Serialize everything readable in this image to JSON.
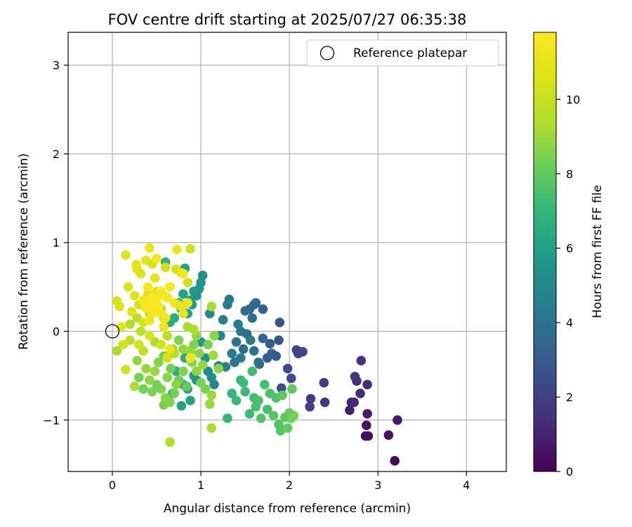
{
  "chart_data": {
    "type": "scatter",
    "title": "FOV centre drift starting at 2025/07/27 06:35:38",
    "xlabel": "Angular distance from reference (arcmin)",
    "ylabel": "Rotation from reference (arcmin)",
    "xlim": [
      -0.5,
      4.45
    ],
    "ylim": [
      -1.58,
      3.37
    ],
    "x_ticks": [
      0,
      1,
      2,
      3,
      4
    ],
    "y_ticks": [
      -1,
      0,
      1,
      2,
      3
    ],
    "grid": true,
    "colormap": "viridis",
    "colorbar": {
      "label": "Hours from first FF file",
      "range": [
        0,
        11.8
      ],
      "ticks": [
        0,
        2,
        4,
        6,
        8,
        10
      ]
    },
    "legend": {
      "placement": "top-right",
      "entries": [
        {
          "label": "Reference platepar",
          "marker": "open-circle",
          "x": 0,
          "y": 0
        }
      ]
    },
    "points": [
      [
        3.19,
        -1.46,
        0.2
      ],
      [
        2.86,
        -1.18,
        0.3
      ],
      [
        2.89,
        -1.18,
        0.4
      ],
      [
        3.12,
        -1.17,
        0.5
      ],
      [
        2.87,
        -1.06,
        0.6
      ],
      [
        3.22,
        -1.0,
        0.7
      ],
      [
        2.88,
        -0.93,
        0.8
      ],
      [
        2.68,
        -0.89,
        0.9
      ],
      [
        2.7,
        -0.8,
        1.0
      ],
      [
        2.73,
        -0.8,
        1.1
      ],
      [
        2.8,
        -0.7,
        1.2
      ],
      [
        2.88,
        -0.6,
        1.3
      ],
      [
        2.76,
        -0.56,
        1.4
      ],
      [
        2.81,
        -0.33,
        1.5
      ],
      [
        2.74,
        -0.51,
        1.6
      ],
      [
        2.4,
        -0.8,
        1.7
      ],
      [
        2.39,
        -0.58,
        1.8
      ],
      [
        2.24,
        -0.76,
        1.9
      ],
      [
        2.23,
        -0.85,
        2.0
      ],
      [
        2.1,
        -0.25,
        2.1
      ],
      [
        2.15,
        -0.23,
        2.2
      ],
      [
        2.08,
        -0.21,
        2.3
      ],
      [
        2.02,
        -0.53,
        2.4
      ],
      [
        1.98,
        -0.42,
        2.5
      ],
      [
        1.91,
        -0.64,
        2.6
      ],
      [
        1.89,
        0.1,
        2.7
      ],
      [
        1.88,
        -0.1,
        2.8
      ],
      [
        1.85,
        -0.28,
        2.9
      ],
      [
        1.78,
        -0.14,
        3.0
      ],
      [
        1.75,
        -0.3,
        3.1
      ],
      [
        1.7,
        0.25,
        3.2
      ],
      [
        1.66,
        -0.37,
        3.3
      ],
      [
        1.6,
        0.3,
        3.4
      ],
      [
        1.62,
        0.32,
        3.5
      ],
      [
        1.55,
        0.25,
        3.6
      ],
      [
        1.5,
        0.23,
        3.7
      ],
      [
        1.48,
        -0.2,
        3.8
      ],
      [
        1.52,
        -0.03,
        3.9
      ],
      [
        1.45,
        0.0,
        4.0
      ],
      [
        1.4,
        -0.12,
        4.1
      ],
      [
        1.38,
        -0.35,
        4.2
      ],
      [
        1.32,
        0.36,
        4.3
      ],
      [
        1.3,
        0.3,
        4.4
      ],
      [
        1.28,
        -0.4,
        4.5
      ],
      [
        1.25,
        0.13,
        4.6
      ],
      [
        1.22,
        -0.05,
        4.7
      ],
      [
        1.2,
        -0.39,
        4.8
      ],
      [
        1.15,
        -0.6,
        4.9
      ],
      [
        1.1,
        0.2,
        5.0
      ],
      [
        1.08,
        -0.45,
        5.1
      ],
      [
        1.6,
        -0.22,
        4.0
      ],
      [
        1.7,
        -0.08,
        3.6
      ],
      [
        1.8,
        -0.25,
        3.2
      ],
      [
        1.56,
        -0.1,
        4.2
      ],
      [
        1.65,
        -0.35,
        3.9
      ],
      [
        1.42,
        0.08,
        4.4
      ],
      [
        1.35,
        -0.25,
        4.6
      ],
      [
        1.58,
        0.15,
        3.8
      ],
      [
        1.45,
        -0.3,
        4.3
      ],
      [
        1.02,
        0.63,
        5.3
      ],
      [
        1.0,
        0.55,
        5.4
      ],
      [
        0.98,
        0.48,
        5.5
      ],
      [
        0.95,
        0.4,
        5.6
      ],
      [
        0.92,
        0.45,
        5.7
      ],
      [
        0.9,
        0.3,
        5.8
      ],
      [
        0.88,
        0.35,
        5.9
      ],
      [
        0.85,
        0.2,
        6.0
      ],
      [
        0.82,
        0.71,
        6.1
      ],
      [
        0.8,
        0.42,
        6.2
      ],
      [
        0.78,
        0.25,
        6.3
      ],
      [
        0.75,
        0.32,
        6.4
      ],
      [
        0.7,
        0.15,
        6.5
      ],
      [
        0.65,
        0.1,
        6.6
      ],
      [
        0.6,
        0.78,
        6.7
      ],
      [
        0.92,
        -0.5,
        5.8
      ],
      [
        0.85,
        -0.65,
        6.0
      ],
      [
        0.78,
        -0.84,
        6.2
      ],
      [
        0.8,
        -0.6,
        6.3
      ],
      [
        0.72,
        -0.45,
        6.5
      ],
      [
        0.68,
        -0.7,
        6.7
      ],
      [
        0.95,
        -0.55,
        5.7
      ],
      [
        1.05,
        -0.3,
        5.5
      ],
      [
        1.12,
        -0.52,
        5.3
      ],
      [
        0.88,
        -0.78,
        6.1
      ],
      [
        0.82,
        -0.3,
        6.4
      ],
      [
        1.0,
        -0.12,
        5.6
      ],
      [
        1.3,
        -0.98,
        7.0
      ],
      [
        1.55,
        -0.93,
        7.2
      ],
      [
        1.6,
        -0.75,
        7.3
      ],
      [
        1.62,
        -0.85,
        7.4
      ],
      [
        1.75,
        -0.88,
        7.5
      ],
      [
        1.78,
        -0.7,
        7.6
      ],
      [
        1.88,
        -1.05,
        7.7
      ],
      [
        1.9,
        -1.12,
        7.8
      ],
      [
        1.95,
        -0.97,
        7.9
      ],
      [
        1.98,
        -1.09,
        8.0
      ],
      [
        2.0,
        -0.92,
        8.1
      ],
      [
        2.02,
        -0.98,
        8.2
      ],
      [
        2.05,
        -0.95,
        8.3
      ],
      [
        1.85,
        -0.75,
        7.6
      ],
      [
        1.72,
        -0.6,
        7.4
      ],
      [
        1.68,
        -0.98,
        7.7
      ],
      [
        1.45,
        -0.55,
        7.1
      ],
      [
        1.5,
        -0.68,
        7.2
      ],
      [
        1.35,
        -0.7,
        7.0
      ],
      [
        1.4,
        -0.78,
        7.1
      ],
      [
        1.92,
        -0.72,
        7.9
      ],
      [
        2.03,
        -0.65,
        8.0
      ],
      [
        1.58,
        -0.45,
        7.3
      ],
      [
        1.48,
        -0.58,
        7.2
      ],
      [
        1.82,
        -0.95,
        7.8
      ],
      [
        1.65,
        -0.78,
        7.5
      ],
      [
        0.58,
        -0.83,
        8.5
      ],
      [
        0.65,
        -0.8,
        8.6
      ],
      [
        0.6,
        -0.75,
        8.7
      ],
      [
        0.55,
        -0.65,
        8.6
      ],
      [
        0.5,
        -0.6,
        8.4
      ],
      [
        0.45,
        -0.68,
        8.5
      ],
      [
        0.42,
        -0.55,
        8.8
      ],
      [
        0.35,
        -0.65,
        8.3
      ],
      [
        0.38,
        -0.42,
        8.9
      ],
      [
        0.3,
        -0.52,
        8.4
      ],
      [
        0.28,
        -0.33,
        8.9
      ],
      [
        0.7,
        -0.7,
        8.3
      ],
      [
        0.75,
        -0.55,
        8.2
      ],
      [
        0.72,
        -0.6,
        8.8
      ],
      [
        0.8,
        -0.45,
        8.6
      ],
      [
        0.84,
        -0.62,
        8.1
      ],
      [
        0.9,
        -0.35,
        8.7
      ],
      [
        0.95,
        -0.45,
        8.8
      ],
      [
        1.0,
        -0.58,
        8.4
      ],
      [
        1.05,
        -0.65,
        8.5
      ],
      [
        1.1,
        -0.82,
        9.0
      ],
      [
        1.12,
        -0.72,
        9.0
      ],
      [
        1.14,
        -0.27,
        9.1
      ],
      [
        1.2,
        -0.42,
        8.8
      ],
      [
        0.62,
        -0.52,
        8.7
      ],
      [
        0.48,
        -0.45,
        8.9
      ],
      [
        0.52,
        -0.35,
        8.6
      ],
      [
        0.66,
        -0.42,
        8.3
      ],
      [
        0.58,
        -0.28,
        8.4
      ],
      [
        0.8,
        -0.2,
        8.9
      ],
      [
        0.88,
        -0.22,
        9.0
      ],
      [
        0.92,
        -0.15,
        8.6
      ],
      [
        0.98,
        -0.25,
        8.7
      ],
      [
        1.02,
        -0.38,
        8.9
      ],
      [
        1.08,
        -0.15,
        8.5
      ],
      [
        1.15,
        -0.05,
        8.8
      ],
      [
        0.95,
        -0.05,
        8.9
      ],
      [
        0.85,
        0.05,
        8.7
      ],
      [
        0.75,
        -0.1,
        8.6
      ],
      [
        0.68,
        -0.2,
        8.8
      ],
      [
        0.65,
        -1.25,
        9.4
      ],
      [
        1.12,
        -1.09,
        9.3
      ],
      [
        0.05,
        -0.22,
        9.2
      ],
      [
        0.25,
        -0.62,
        9.3
      ],
      [
        0.2,
        -0.1,
        9.5
      ],
      [
        1.12,
        0.28,
        9.3
      ],
      [
        0.75,
        0.3,
        9.6
      ],
      [
        0.85,
        0.05,
        9.2
      ],
      [
        0.92,
        0.02,
        9.4
      ],
      [
        0.58,
        0.15,
        9.7
      ],
      [
        0.48,
        -0.12,
        9.3
      ],
      [
        0.32,
        0.0,
        9.6
      ],
      [
        0.42,
        0.2,
        9.5
      ],
      [
        0.35,
        -0.22,
        9.8
      ],
      [
        0.55,
        0.25,
        9.4
      ],
      [
        0.62,
        -0.05,
        9.7
      ],
      [
        0.7,
        -0.25,
        9.6
      ],
      [
        0.28,
        0.15,
        9.5
      ],
      [
        0.2,
        0.08,
        9.4
      ],
      [
        0.15,
        -0.43,
        10.2
      ],
      [
        0.12,
        -0.15,
        10.3
      ],
      [
        0.08,
        0.28,
        10.5
      ],
      [
        0.05,
        0.34,
        10.4
      ],
      [
        0.18,
        0.5,
        10.6
      ],
      [
        0.15,
        0.86,
        10.7
      ],
      [
        0.28,
        0.7,
        10.8
      ],
      [
        0.27,
        0.75,
        10.9
      ],
      [
        0.32,
        0.65,
        10.6
      ],
      [
        0.38,
        0.8,
        10.8
      ],
      [
        0.45,
        0.76,
        10.5
      ],
      [
        0.48,
        0.6,
        10.7
      ],
      [
        0.6,
        0.72,
        10.3
      ],
      [
        0.72,
        0.7,
        10.4
      ],
      [
        0.78,
        0.66,
        10.5
      ],
      [
        0.88,
        0.93,
        10.2
      ],
      [
        0.85,
        0.55,
        10.3
      ],
      [
        0.25,
        0.4,
        10.6
      ],
      [
        0.3,
        0.3,
        10.4
      ],
      [
        0.22,
        0.22,
        10.7
      ],
      [
        0.35,
        0.1,
        10.5
      ],
      [
        0.42,
        -0.05,
        10.6
      ],
      [
        0.55,
        -0.15,
        10.2
      ],
      [
        0.62,
        -0.3,
        10.4
      ],
      [
        0.3,
        -0.15,
        10.3
      ],
      [
        0.1,
        0.05,
        10.9
      ],
      [
        0.5,
        0.45,
        10.8
      ],
      [
        0.4,
        0.42,
        10.9
      ],
      [
        0.42,
        0.94,
        11.3
      ],
      [
        0.5,
        0.82,
        11.4
      ],
      [
        0.73,
        0.92,
        11.2
      ],
      [
        0.8,
        0.65,
        11.5
      ],
      [
        0.65,
        0.5,
        11.6
      ],
      [
        0.55,
        0.45,
        11.7
      ],
      [
        0.45,
        0.38,
        11.6
      ],
      [
        0.48,
        0.3,
        11.7
      ],
      [
        0.52,
        0.28,
        11.8
      ],
      [
        0.5,
        0.25,
        11.7
      ],
      [
        0.45,
        0.2,
        11.6
      ],
      [
        0.55,
        0.2,
        11.5
      ],
      [
        0.6,
        0.15,
        11.4
      ],
      [
        0.58,
        0.05,
        11.3
      ],
      [
        0.4,
        0.5,
        11.5
      ],
      [
        0.35,
        0.35,
        11.4
      ],
      [
        0.38,
        0.26,
        11.6
      ],
      [
        0.62,
        0.38,
        11.5
      ],
      [
        0.7,
        0.32,
        11.3
      ],
      [
        0.78,
        0.28,
        11.2
      ],
      [
        0.85,
        0.32,
        11.1
      ],
      [
        0.8,
        0.2,
        11.0
      ],
      [
        0.88,
        -0.3,
        11.2
      ],
      [
        0.65,
        -0.2,
        11.1
      ],
      [
        0.42,
        0.12,
        11.4
      ],
      [
        0.5,
        0.35,
        11.8
      ],
      [
        0.56,
        0.42,
        11.6
      ],
      [
        0.44,
        0.3,
        11.7
      ]
    ]
  }
}
